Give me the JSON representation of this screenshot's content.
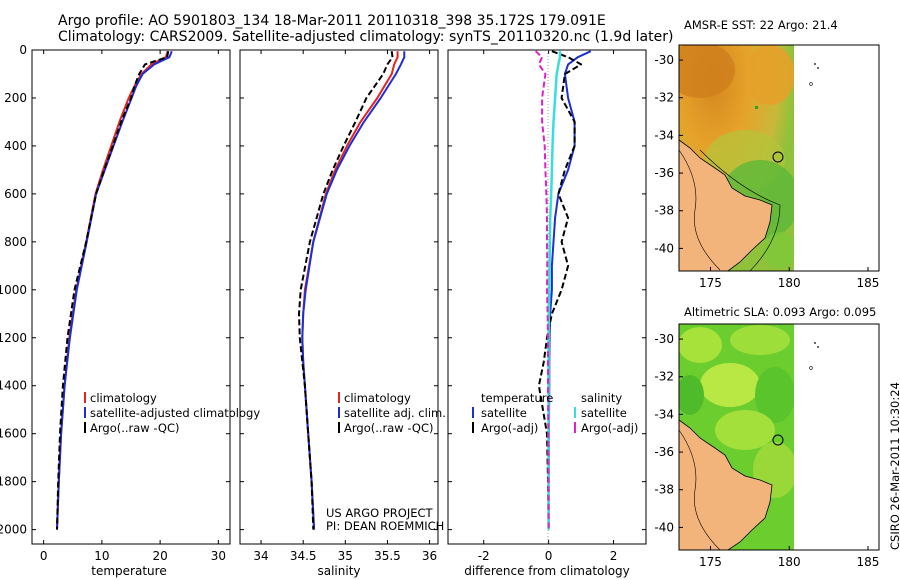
{
  "titles": {
    "line1": "Argo profile: AO 5901803_134 18-Mar-2011 20110318_398 35.172S 179.091E",
    "line2": "Climatology: CARS2009. Satellite-adjusted climatology: synTS_20110320.nc (1.9d later)",
    "map_top": "AMSR-E SST: 22 Argo: 21.4",
    "map_bottom": "Altimetric SLA: 0.093 Argo: 0.095",
    "side_stamp": "CSIRO 26-Mar-2011 10:30:24",
    "project_line1": "US ARGO PROJECT",
    "project_line2": "PI: DEAN ROEMMICH"
  },
  "colors": {
    "climatology": "#e8231c",
    "satellite": "#1c2fd6",
    "argo": "#000000",
    "salinity_satellite": "#38dede",
    "salinity_argo": "#e020c8",
    "land": "#f2b47a",
    "sst_warm": "#e39a22",
    "sst_cool": "#3aa52a"
  },
  "chart_data": [
    {
      "type": "line",
      "name": "temperature-panel",
      "xlabel": "temperature",
      "ylabel": "",
      "xlim": [
        -2,
        32
      ],
      "ylim": [
        2060,
        0
      ],
      "xticks": [
        0,
        10,
        20,
        30
      ],
      "yticks": [
        0,
        200,
        400,
        600,
        800,
        1000,
        1200,
        1400,
        1600,
        1800,
        2000
      ],
      "legend": [
        "climatology",
        "satellite-adjusted climatology",
        "Argo(..raw -QC)"
      ],
      "depth": [
        5,
        30,
        60,
        100,
        150,
        200,
        300,
        400,
        500,
        600,
        800,
        1000,
        1200,
        1400,
        1600,
        1800,
        2000
      ],
      "series": [
        {
          "name": "climatology",
          "values": [
            21.3,
            21.0,
            18.5,
            16.8,
            15.6,
            14.6,
            13.0,
            11.6,
            10.2,
            8.9,
            7.3,
            5.6,
            4.4,
            3.6,
            3.0,
            2.6,
            2.3
          ]
        },
        {
          "name": "satellite-adjusted climatology",
          "values": [
            22.0,
            21.6,
            19.0,
            17.0,
            15.9,
            15.1,
            13.5,
            12.0,
            10.5,
            9.0,
            7.4,
            5.7,
            4.5,
            3.6,
            3.0,
            2.6,
            2.3
          ]
        },
        {
          "name": "Argo(..raw -QC)",
          "values": [
            21.4,
            21.2,
            17.4,
            16.4,
            15.6,
            15.0,
            13.3,
            11.9,
            10.4,
            9.0,
            7.3,
            5.3,
            4.1,
            3.3,
            2.8,
            2.5,
            2.3
          ]
        }
      ]
    },
    {
      "type": "line",
      "name": "salinity-panel",
      "xlabel": "salinity",
      "ylabel": "",
      "xlim": [
        33.75,
        36.1
      ],
      "ylim": [
        2060,
        0
      ],
      "xticks": [
        34,
        34.5,
        35,
        35.5,
        36
      ],
      "yticks": [
        0,
        200,
        400,
        600,
        800,
        1000,
        1200,
        1400,
        1600,
        1800,
        2000
      ],
      "legend": [
        "climatology",
        "satellite adj. clim.",
        "Argo(..raw -QC)"
      ],
      "depth": [
        5,
        30,
        60,
        100,
        200,
        300,
        400,
        500,
        600,
        800,
        1000,
        1100,
        1200,
        1300,
        1400,
        1600,
        1800,
        2000
      ],
      "series": [
        {
          "name": "climatology",
          "values": [
            35.62,
            35.62,
            35.58,
            35.55,
            35.38,
            35.18,
            35.02,
            34.88,
            34.77,
            34.62,
            34.52,
            34.5,
            34.49,
            34.5,
            34.52,
            34.56,
            34.6,
            34.63
          ]
        },
        {
          "name": "satellite adj. clim.",
          "values": [
            35.7,
            35.7,
            35.66,
            35.6,
            35.42,
            35.22,
            35.05,
            34.9,
            34.78,
            34.62,
            34.53,
            34.5,
            34.49,
            34.5,
            34.52,
            34.56,
            34.6,
            34.63
          ]
        },
        {
          "name": "Argo(..raw -QC)",
          "values": [
            35.55,
            35.56,
            35.5,
            35.45,
            35.25,
            35.12,
            34.98,
            34.85,
            34.74,
            34.58,
            34.47,
            34.45,
            34.46,
            34.49,
            34.52,
            34.56,
            34.6,
            34.62
          ]
        }
      ]
    },
    {
      "type": "line",
      "name": "difference-panel",
      "xlabel": "difference from climatology",
      "ylabel": "",
      "xlim": [
        -3.1,
        3.0
      ],
      "ylim": [
        2060,
        0
      ],
      "xticks": [
        -2,
        0,
        2
      ],
      "yticks": [
        0,
        200,
        400,
        600,
        800,
        1000,
        1200,
        1400,
        1600,
        1800,
        2000
      ],
      "legend_temperature_heading": "temperature",
      "legend_salinity_heading": "salinity",
      "legend": [
        "satellite",
        "Argo(-adj)",
        "satellite",
        "Argo(-adj)"
      ],
      "depth": [
        5,
        30,
        60,
        100,
        200,
        300,
        400,
        500,
        600,
        700,
        800,
        900,
        1000,
        1100,
        1200,
        1300,
        1400,
        1600,
        1800,
        2000
      ],
      "series": [
        {
          "name": "temperature satellite",
          "values": [
            1.3,
            0.9,
            0.6,
            0.5,
            0.6,
            0.8,
            0.8,
            0.6,
            0.3,
            0.2,
            0.15,
            0.1,
            0.1,
            0.05,
            0.03,
            0.02,
            0.02,
            0.01,
            0.0,
            0.0
          ]
        },
        {
          "name": "temperature Argo(-adj)",
          "values": [
            0.1,
            0.6,
            1.0,
            0.5,
            0.4,
            0.8,
            0.8,
            0.5,
            0.3,
            0.6,
            0.4,
            0.6,
            0.4,
            0.1,
            -0.05,
            -0.15,
            -0.3,
            -0.05,
            -0.02,
            0.0
          ]
        },
        {
          "name": "salinity satellite",
          "values": [
            0.35,
            0.35,
            0.3,
            0.25,
            0.2,
            0.15,
            0.12,
            0.1,
            0.08,
            0.05,
            0.04,
            0.03,
            0.02,
            0.01,
            0.0,
            0.0,
            0.0,
            0.0,
            0.0,
            0.0
          ]
        },
        {
          "name": "salinity Argo(-adj)",
          "values": [
            -0.4,
            -0.2,
            -0.3,
            -0.1,
            -0.2,
            -0.2,
            -0.12,
            -0.1,
            -0.07,
            -0.05,
            -0.05,
            -0.04,
            -0.05,
            -0.03,
            -0.02,
            -0.02,
            -0.02,
            -0.01,
            0.0,
            0.0
          ]
        }
      ]
    },
    {
      "type": "heatmap",
      "name": "sst-map",
      "title": "AMSR-E SST: 22 Argo: 21.4",
      "xlabel": "",
      "ylabel": "",
      "xlim": [
        173,
        185.7
      ],
      "ylim": [
        -41.2,
        -29.2
      ],
      "xticks": [
        175,
        180,
        185
      ],
      "yticks": [
        -30,
        -32,
        -34,
        -36,
        -38,
        -40
      ],
      "float_position": {
        "lon": 179.091,
        "lat": -35.172
      }
    },
    {
      "type": "heatmap",
      "name": "sla-map",
      "title": "Altimetric SLA: 0.093 Argo: 0.095",
      "xlabel": "",
      "ylabel": "",
      "xlim": [
        173,
        185.7
      ],
      "ylim": [
        -41.2,
        -29.2
      ],
      "xticks": [
        175,
        180,
        185
      ],
      "yticks": [
        -30,
        -32,
        -34,
        -36,
        -38,
        -40
      ],
      "float_position": {
        "lon": 179.091,
        "lat": -35.172
      }
    }
  ]
}
